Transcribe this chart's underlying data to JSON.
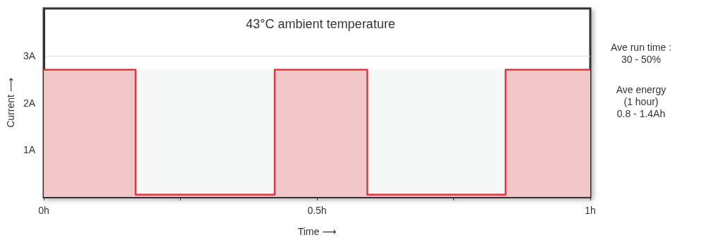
{
  "chart_data": {
    "type": "step",
    "title": "43°C ambient temperature",
    "xlabel": "Time ⟶",
    "ylabel": "Current ⟶",
    "x": [
      0,
      0.168,
      0.4225,
      0.592,
      0.845,
      1
    ],
    "series": [
      {
        "color": "#e8323c",
        "values": [
          2.7,
          0.05,
          2.7,
          0.05,
          2.7,
          2.7
        ]
      }
    ],
    "xlim": [
      0,
      1
    ],
    "xticks": [
      {
        "value": 0,
        "label": "0h"
      },
      {
        "value": 0.25,
        "label": null
      },
      {
        "value": 0.5,
        "label": "0.5h"
      },
      {
        "value": 0.75,
        "label": null
      },
      {
        "value": 1,
        "label": "1h"
      }
    ],
    "ylim": [
      0,
      4
    ],
    "yticks": [
      {
        "value": 1,
        "label": "1A"
      },
      {
        "value": 2,
        "label": "2A"
      },
      {
        "value": 3,
        "label": "3A"
      }
    ],
    "bands": [
      {
        "axis": "y",
        "from": 0,
        "to": 2.7,
        "color": "#f6f8f8"
      }
    ],
    "annotations": [
      "Ave run time :\n30 - 50%",
      "Ave energy\n(1 hour)\n0.8 - 1.4Ah"
    ],
    "grid": "y",
    "marker": "none",
    "line_style": "solid"
  }
}
